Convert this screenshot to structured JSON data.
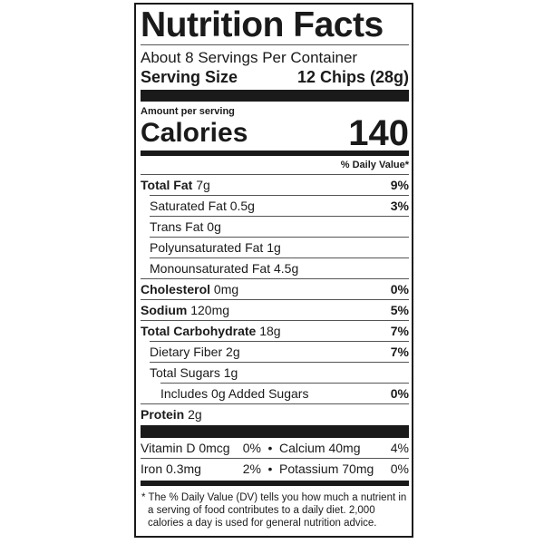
{
  "title": "Nutrition Facts",
  "servings_per_container": "About 8 Servings Per Container",
  "serving_size": {
    "label": "Serving Size",
    "value": "12 Chips (28g)"
  },
  "amount_per_serving": "Amount per serving",
  "calories": {
    "label": "Calories",
    "value": "140"
  },
  "daily_value_header": "% Daily Value*",
  "nutrients": [
    {
      "name": "Total Fat",
      "amount": "7g",
      "dv": "9%"
    },
    {
      "name": "Saturated Fat",
      "amount": "0.5g",
      "dv": "3%"
    },
    {
      "name": "Trans Fat",
      "amount": "0g",
      "dv": ""
    },
    {
      "name": "Polyunsaturated Fat",
      "amount": "1g",
      "dv": ""
    },
    {
      "name": "Monounsaturated Fat",
      "amount": "4.5g",
      "dv": ""
    },
    {
      "name": "Cholesterol",
      "amount": "0mg",
      "dv": "0%"
    },
    {
      "name": "Sodium",
      "amount": "120mg",
      "dv": "5%"
    },
    {
      "name": "Total Carbohydrate",
      "amount": "18g",
      "dv": "7%"
    },
    {
      "name": "Dietary Fiber",
      "amount": "2g",
      "dv": "7%"
    },
    {
      "name": "Total Sugars",
      "amount": "1g",
      "dv": ""
    },
    {
      "name": "Includes 0g Added Sugars",
      "amount": "",
      "dv": "0%"
    },
    {
      "name": "Protein",
      "amount": "2g",
      "dv": ""
    }
  ],
  "vitamins": [
    {
      "left": "Vitamin D 0mcg",
      "left_dv": "0%",
      "right": "Calcium 40mg",
      "right_dv": "4%"
    },
    {
      "left": "Iron 0.3mg",
      "left_dv": "2%",
      "right": "Potassium 70mg",
      "right_dv": "0%"
    }
  ],
  "bullet": "•",
  "footnote": "* The % Daily Value (DV) tells you how much a nutrient in a serving of food contributes to a daily diet. 2,000 calories a day is used for general nutrition advice."
}
